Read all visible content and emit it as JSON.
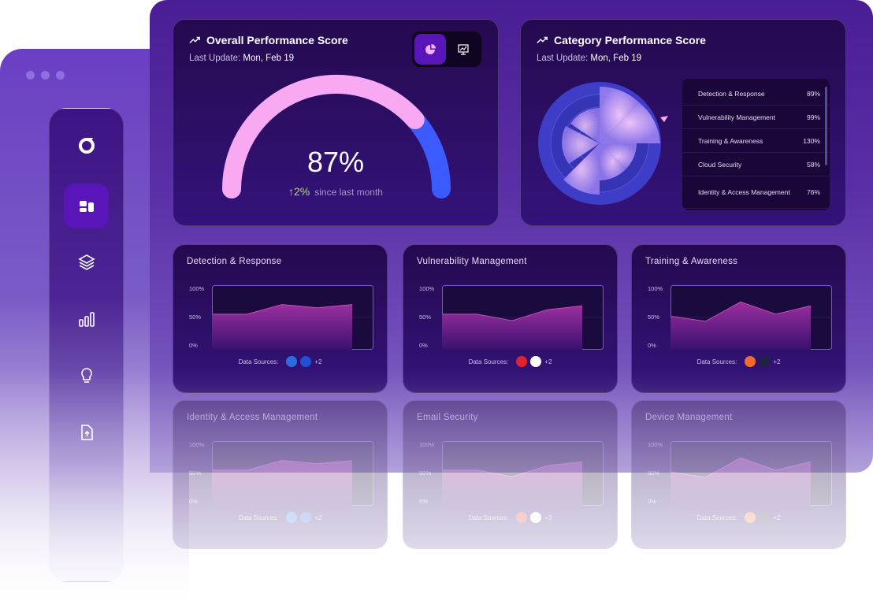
{
  "overall": {
    "title": "Overall Performance Score",
    "last_update_label": "Last Update:",
    "last_update_value": "Mon, Feb 19",
    "score": "87%",
    "score_fraction": 0.87,
    "change_arrow": "↑",
    "change_value": "2%",
    "change_label": "since last month",
    "toggle": [
      "pie-chart-icon",
      "presentation-chart-icon"
    ]
  },
  "category": {
    "title": "Category Performance Score",
    "last_update_label": "Last Update:",
    "last_update_value": "Mon, Feb 19",
    "items": [
      {
        "label": "Detection & Response",
        "value": "89%"
      },
      {
        "label": "Vulnerability Management",
        "value": "99%"
      },
      {
        "label": "Training & Awareness",
        "value": "130%"
      },
      {
        "label": "Cloud Security",
        "value": "58%"
      },
      {
        "label": "Identity & Access Management",
        "value": "76%"
      }
    ]
  },
  "sidebar": [
    "logo-icon",
    "dashboard-icon",
    "layers-icon",
    "bar-chart-icon",
    "lightbulb-icon",
    "file-upload-icon"
  ],
  "cards": [
    {
      "title": "Detection & Response",
      "ticks": [
        "100%",
        "50%",
        "0%"
      ],
      "sources_label": "Data Sources:",
      "more": "+2",
      "values": [
        55,
        55,
        70,
        65,
        70
      ]
    },
    {
      "title": "Vulnerability Management",
      "ticks": [
        "100%",
        "50%",
        "0%"
      ],
      "sources_label": "Data Sources:",
      "more": "+2",
      "values": [
        55,
        55,
        45,
        62,
        68
      ]
    },
    {
      "title": "Training & Awareness",
      "ticks": [
        "100%",
        "50%",
        "0%"
      ],
      "sources_label": "Data Sources:",
      "more": "+2",
      "values": [
        52,
        44,
        74,
        55,
        68
      ]
    },
    {
      "title": "Identity & Access Management",
      "ticks": [
        "100%",
        "50%",
        "0%"
      ],
      "sources_label": "Data Sources:",
      "more": "+2",
      "values": [
        55,
        55,
        70,
        65,
        70
      ]
    },
    {
      "title": "Email Security",
      "ticks": [
        "100%",
        "50%",
        "0%"
      ],
      "sources_label": "Data Sources:",
      "more": "+2",
      "values": [
        55,
        55,
        45,
        62,
        68
      ]
    },
    {
      "title": "Device Management",
      "ticks": [
        "100%",
        "50%",
        "0%"
      ],
      "sources_label": "Data Sources:",
      "more": "+2",
      "values": [
        52,
        44,
        74,
        55,
        68
      ]
    }
  ],
  "colors": {
    "accent": "#5a15b8",
    "gauge_pink": "#f9a8f2",
    "gauge_blue": "#3b5bff"
  }
}
